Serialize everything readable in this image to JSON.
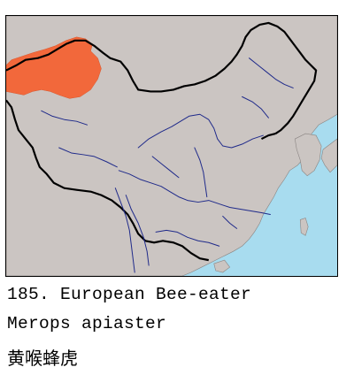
{
  "caption": {
    "number_and_common_name": "185. European Bee-eater",
    "scientific_name": "Merops apiaster",
    "chinese_name": "黄喉蜂虎"
  },
  "map": {
    "colors": {
      "sea": "#a8dcef",
      "land": "#cbc5c2",
      "range": "#f2683b",
      "rivers": "#1f2a8a",
      "border": "#000000",
      "frame": "#000000"
    },
    "range_region": "northwest Xinjiang (Altai / Junggar)"
  }
}
